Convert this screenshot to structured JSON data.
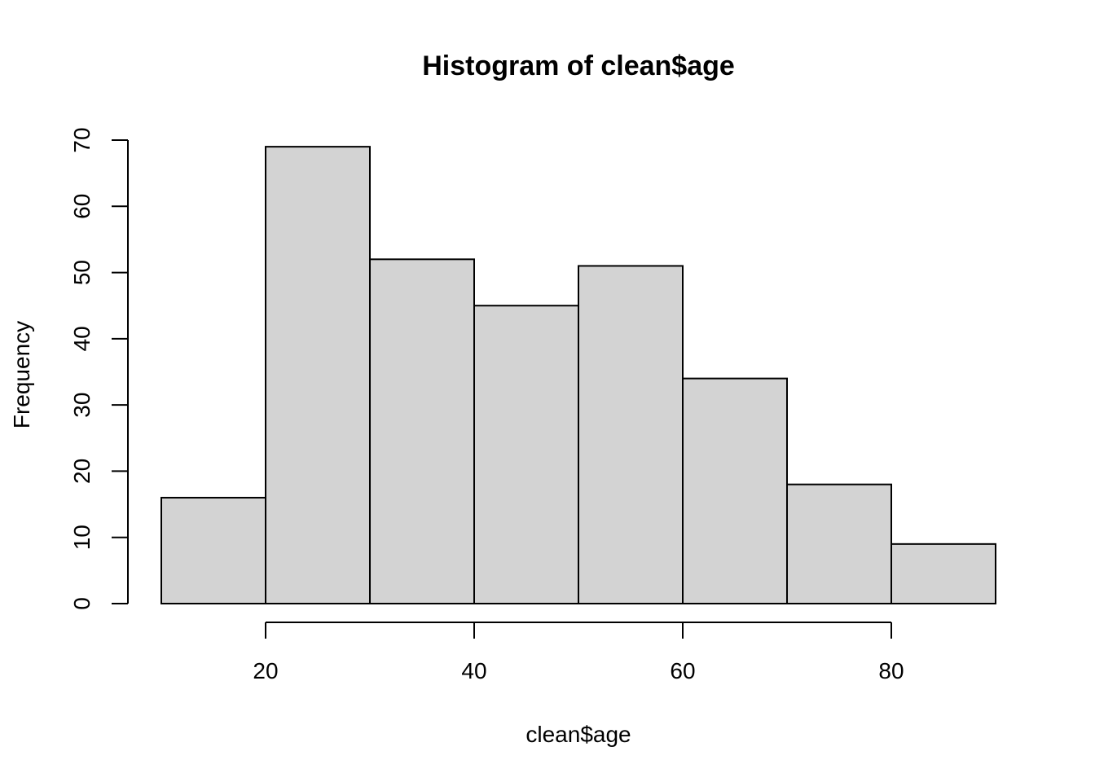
{
  "chart_data": {
    "type": "bar",
    "title": "Histogram of clean$age",
    "xlabel": "clean$age",
    "ylabel": "Frequency",
    "bins": [
      {
        "start": 10,
        "end": 20,
        "count": 16
      },
      {
        "start": 20,
        "end": 30,
        "count": 69
      },
      {
        "start": 30,
        "end": 40,
        "count": 52
      },
      {
        "start": 40,
        "end": 50,
        "count": 45
      },
      {
        "start": 50,
        "end": 60,
        "count": 51
      },
      {
        "start": 60,
        "end": 70,
        "count": 34
      },
      {
        "start": 70,
        "end": 80,
        "count": 18
      },
      {
        "start": 80,
        "end": 90,
        "count": 9
      }
    ],
    "xlim": [
      10,
      90
    ],
    "ylim": [
      0,
      70
    ],
    "x_ticks": [
      20,
      40,
      60,
      80
    ],
    "y_ticks": [
      0,
      10,
      20,
      30,
      40,
      50,
      60,
      70
    ],
    "bar_fill": "#d3d3d3",
    "bar_stroke": "#000000",
    "grid": false,
    "legend": "none"
  }
}
